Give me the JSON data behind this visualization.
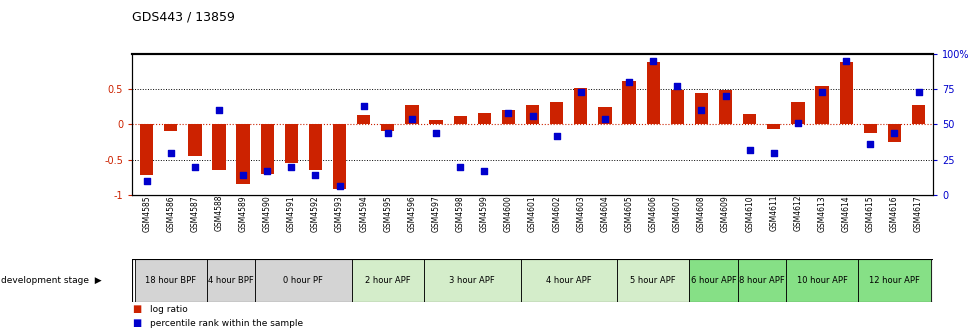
{
  "title": "GDS443 / 13859",
  "samples": [
    "GSM4585",
    "GSM4586",
    "GSM4587",
    "GSM4588",
    "GSM4589",
    "GSM4590",
    "GSM4591",
    "GSM4592",
    "GSM4593",
    "GSM4594",
    "GSM4595",
    "GSM4596",
    "GSM4597",
    "GSM4598",
    "GSM4599",
    "GSM4600",
    "GSM4601",
    "GSM4602",
    "GSM4603",
    "GSM4604",
    "GSM4605",
    "GSM4606",
    "GSM4607",
    "GSM4608",
    "GSM4609",
    "GSM4610",
    "GSM4611",
    "GSM4612",
    "GSM4613",
    "GSM4614",
    "GSM4615",
    "GSM4616",
    "GSM4617"
  ],
  "log_ratio": [
    -0.72,
    -0.1,
    -0.45,
    -0.65,
    -0.85,
    -0.7,
    -0.55,
    -0.65,
    -0.92,
    0.13,
    -0.1,
    0.28,
    0.06,
    0.12,
    0.16,
    0.2,
    0.28,
    0.32,
    0.52,
    0.25,
    0.62,
    0.88,
    0.48,
    0.45,
    0.48,
    0.15,
    -0.06,
    0.32,
    0.54,
    0.88,
    -0.13,
    -0.25,
    0.28
  ],
  "percentile": [
    10,
    30,
    20,
    60,
    14,
    17,
    20,
    14,
    6,
    63,
    44,
    54,
    44,
    20,
    17,
    58,
    56,
    42,
    73,
    54,
    80,
    95,
    77,
    60,
    70,
    32,
    30,
    51,
    73,
    95,
    36,
    44,
    73
  ],
  "stage_groups": [
    {
      "label": "18 hour BPF",
      "start": 0,
      "end": 3,
      "color": "#d4d4d4"
    },
    {
      "label": "4 hour BPF",
      "start": 3,
      "end": 5,
      "color": "#d4d4d4"
    },
    {
      "label": "0 hour PF",
      "start": 5,
      "end": 9,
      "color": "#d4d4d4"
    },
    {
      "label": "2 hour APF",
      "start": 9,
      "end": 12,
      "color": "#d4edca"
    },
    {
      "label": "3 hour APF",
      "start": 12,
      "end": 16,
      "color": "#d4edca"
    },
    {
      "label": "4 hour APF",
      "start": 16,
      "end": 20,
      "color": "#d4edca"
    },
    {
      "label": "5 hour APF",
      "start": 20,
      "end": 23,
      "color": "#d4edca"
    },
    {
      "label": "6 hour APF",
      "start": 23,
      "end": 25,
      "color": "#86e086"
    },
    {
      "label": "8 hour APF",
      "start": 25,
      "end": 27,
      "color": "#86e086"
    },
    {
      "label": "10 hour APF",
      "start": 27,
      "end": 30,
      "color": "#86e086"
    },
    {
      "label": "12 hour APF",
      "start": 30,
      "end": 33,
      "color": "#86e086"
    }
  ],
  "ylim_left": [
    -1.0,
    1.0
  ],
  "ylim_right": [
    0,
    100
  ],
  "bar_color": "#cc2200",
  "dot_color": "#0000cc",
  "legend_log_ratio": "log ratio",
  "legend_percentile": "percentile rank within the sample"
}
